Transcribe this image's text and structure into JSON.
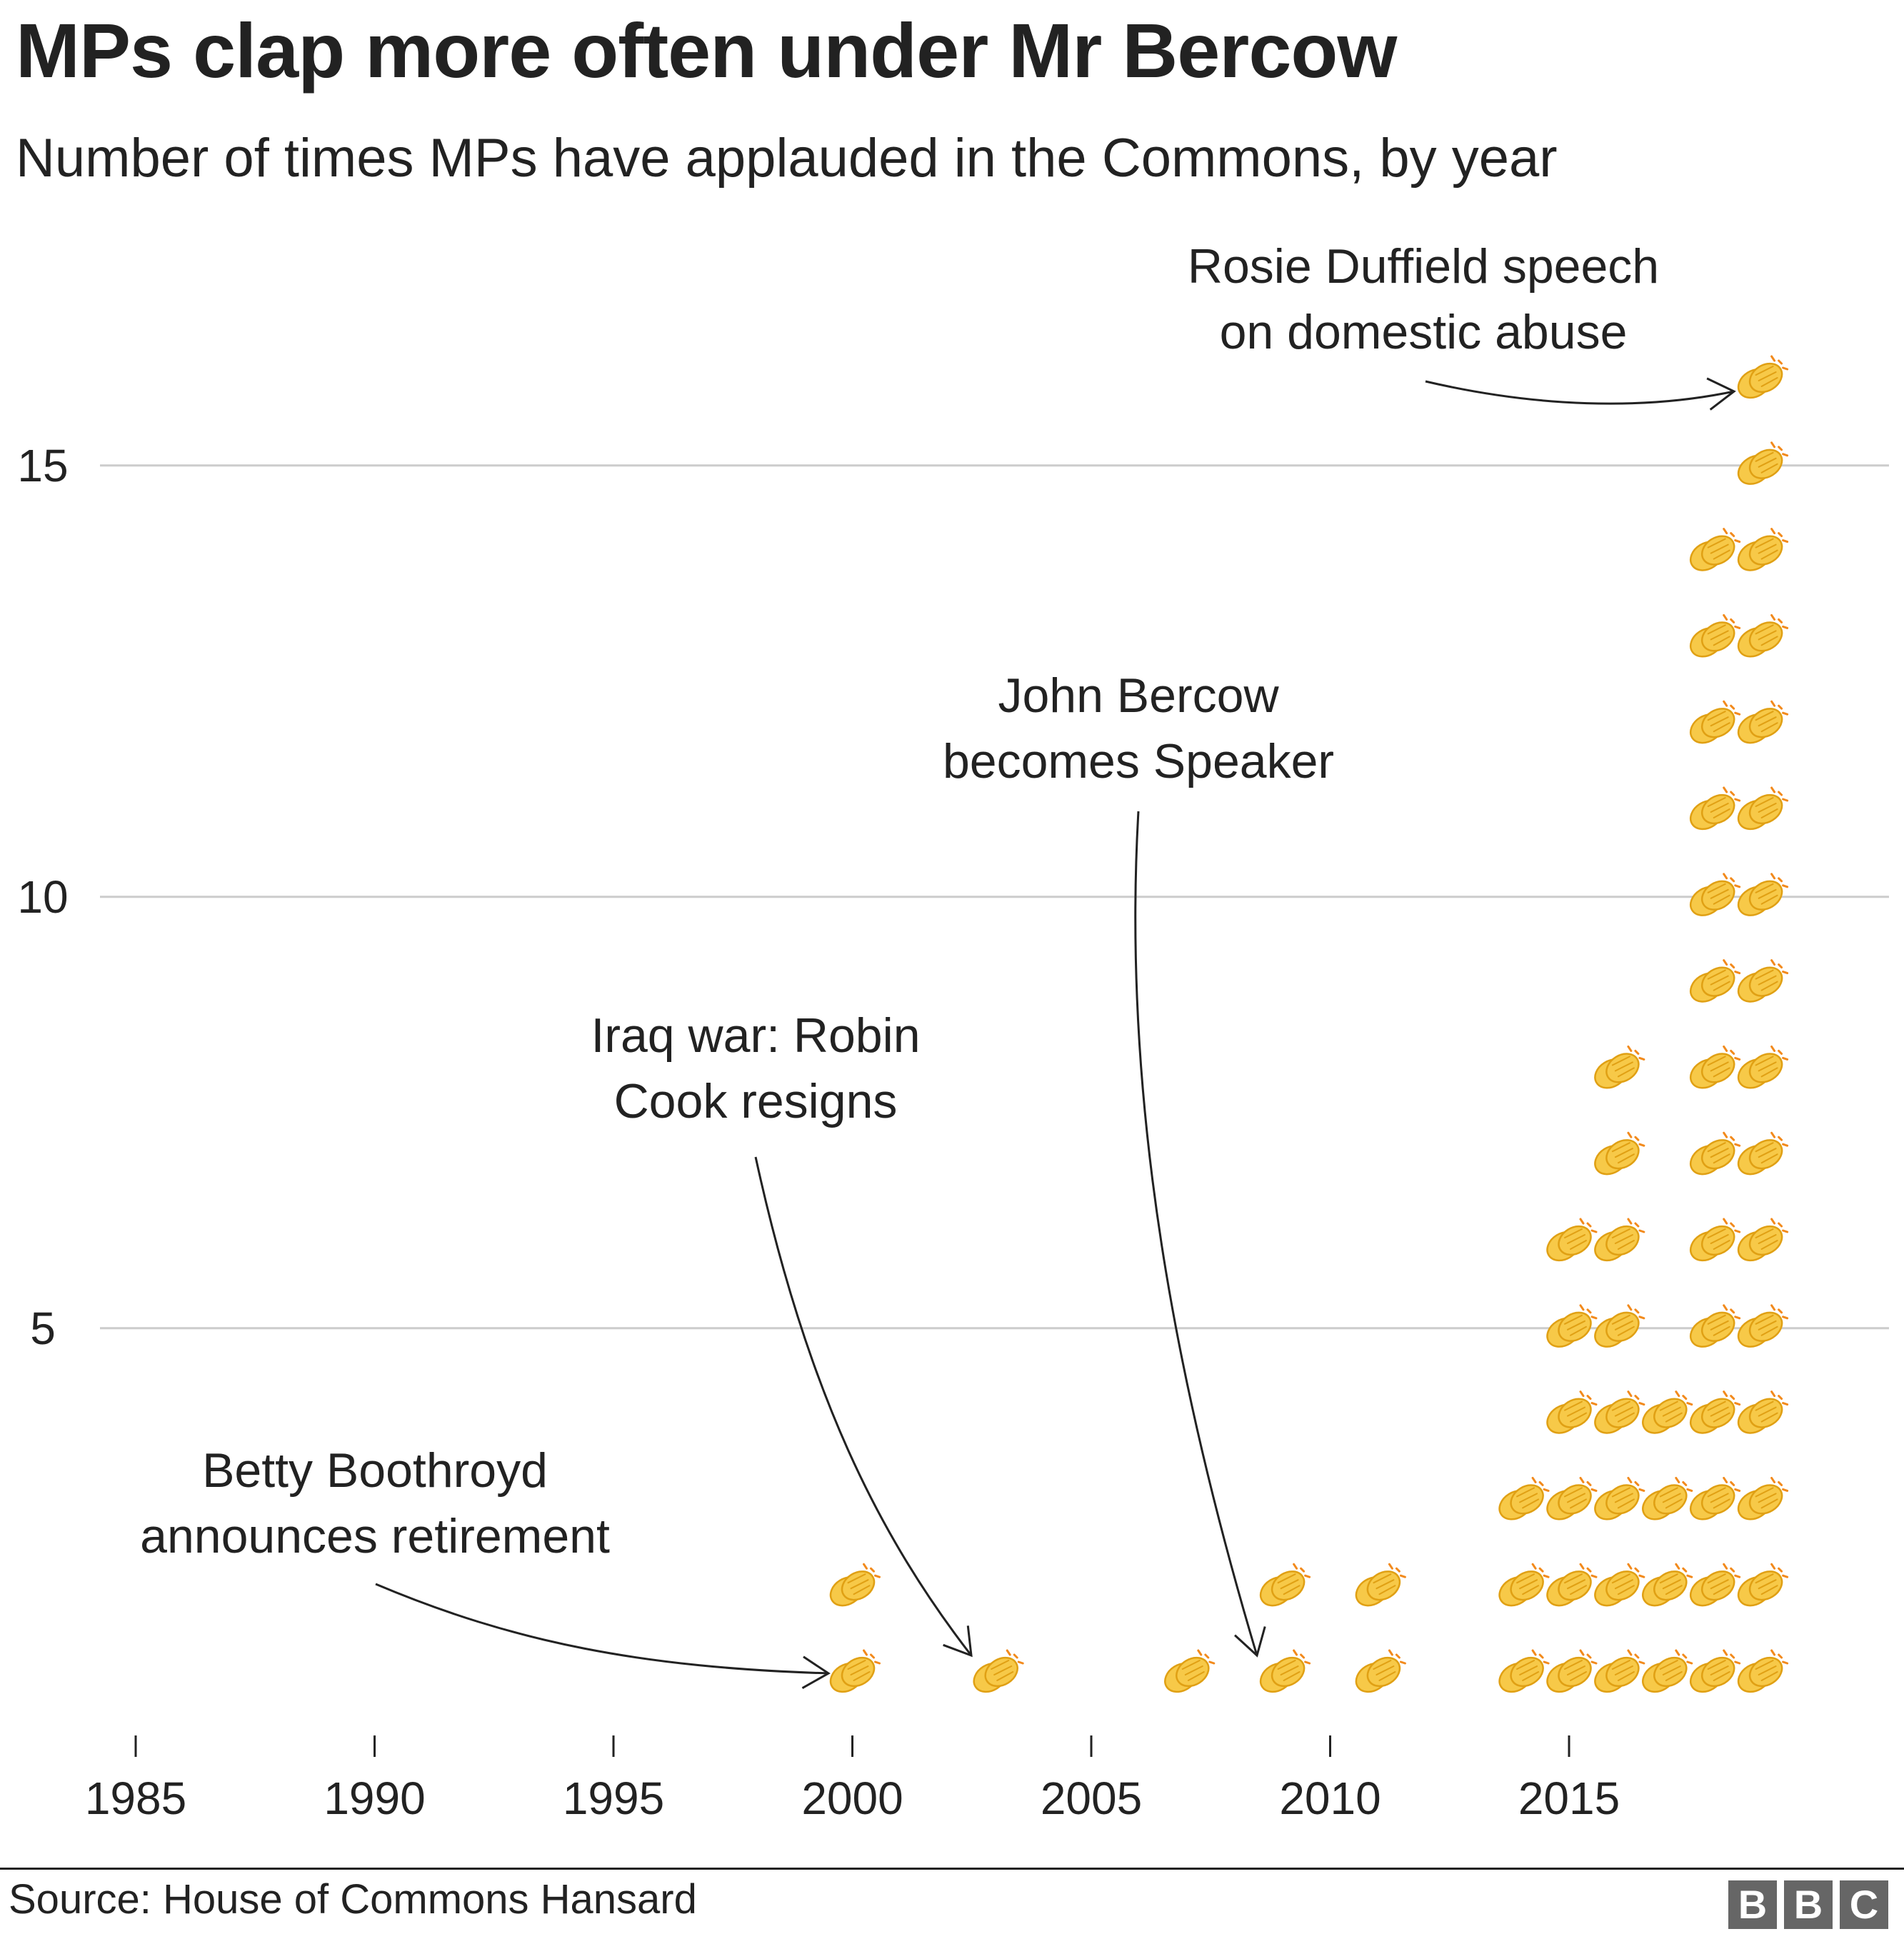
{
  "title": "MPs clap more often under Mr Bercow",
  "subtitle": "Number of times MPs have applauded in the Commons, by year",
  "source": "Source: House of Commons Hansard",
  "logo": [
    "B",
    "B",
    "C"
  ],
  "colors": {
    "text": "#222222",
    "grid": "#cccccc",
    "clap_fill": "#f7c948",
    "clap_stroke": "#e0a014",
    "clap_spark": "#f28a1c",
    "logo_bg": "#666666"
  },
  "icon": "clapping-hands-icon",
  "chart_data": {
    "type": "pictogram",
    "title": "MPs clap more often under Mr Bercow",
    "subtitle": "Number of times MPs have applauded in the Commons, by year",
    "x_ticks": [
      1985,
      1990,
      1995,
      2000,
      2005,
      2010,
      2015
    ],
    "y_ticks": [
      5,
      10,
      15
    ],
    "xlim": [
      1984,
      2021
    ],
    "ylim": [
      0,
      17
    ],
    "grid": true,
    "columns": [
      {
        "year": 2000,
        "count": 2
      },
      {
        "year": 2003,
        "count": 1
      },
      {
        "year": 2007,
        "count": 1
      },
      {
        "year": 2009,
        "count": 2
      },
      {
        "year": 2011,
        "count": 2
      },
      {
        "year": 2014,
        "count": 3
      },
      {
        "year": 2015,
        "count": 6
      },
      {
        "year": 2016,
        "count": 8
      },
      {
        "year": 2017,
        "count": 4
      },
      {
        "year": 2018,
        "count": 14
      },
      {
        "year": 2019,
        "count": 16
      }
    ],
    "annotations": [
      {
        "lines": [
          "Betty Boothroyd",
          "announces retirement"
        ],
        "year": 2000,
        "value": 1
      },
      {
        "lines": [
          "Iraq war: Robin",
          "Cook resigns"
        ],
        "year": 2003,
        "value": 1
      },
      {
        "lines": [
          "John Bercow",
          "becomes Speaker"
        ],
        "year": 2009,
        "value": 1
      },
      {
        "lines": [
          "Rosie Duffield speech",
          "on domestic abuse"
        ],
        "year": 2019,
        "value": 16
      }
    ]
  }
}
